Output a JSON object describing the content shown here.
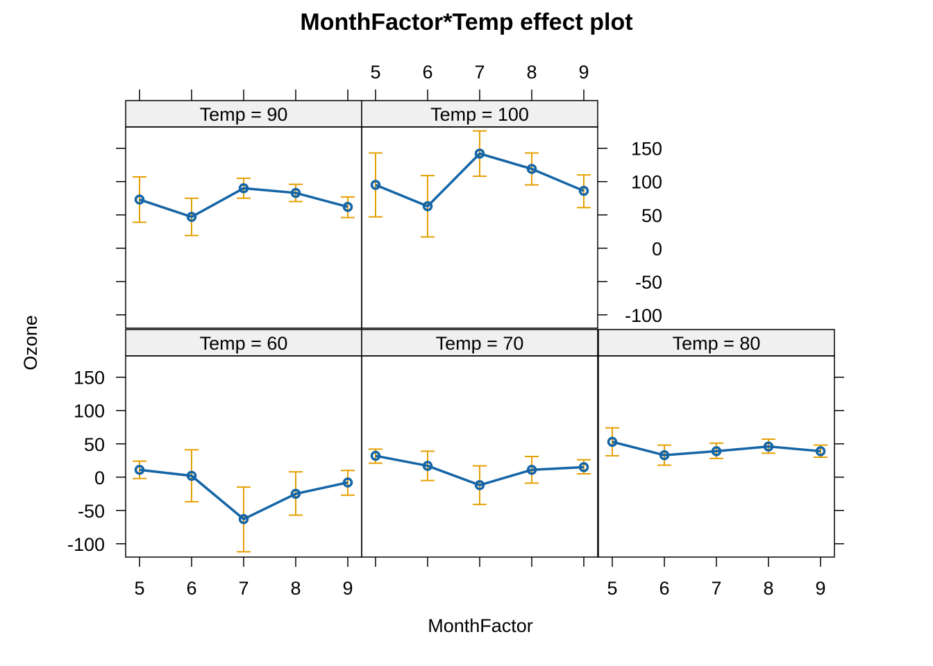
{
  "chart_data": {
    "type": "line",
    "title": "MonthFactor*Temp effect plot",
    "xlabel": "MonthFactor",
    "ylabel": "Ozone",
    "categories": [
      "5",
      "6",
      "7",
      "8",
      "9"
    ],
    "ylim": [
      -120,
      182
    ],
    "yticks": [
      "-100",
      "-50",
      "0",
      "50",
      "100",
      "150"
    ],
    "colors": {
      "line": "#1565a6",
      "error_bars": "#e69f00",
      "strip": "#f0f0f0"
    },
    "panels": [
      {
        "label": "Temp = 90",
        "values": [
          73,
          47,
          90,
          83,
          62
        ],
        "lower": [
          39,
          19,
          75,
          70,
          46
        ],
        "upper": [
          107,
          75,
          105,
          96,
          77
        ]
      },
      {
        "label": "Temp = 100",
        "values": [
          95,
          63,
          142,
          119,
          86
        ],
        "lower": [
          47,
          17,
          108,
          95,
          61
        ],
        "upper": [
          143,
          109,
          176,
          143,
          110
        ]
      },
      {
        "label": "Temp = 60",
        "values": [
          11,
          2,
          -63,
          -25,
          -8
        ],
        "lower": [
          -2,
          -37,
          -112,
          -57,
          -27
        ],
        "upper": [
          24,
          41,
          -15,
          8,
          10
        ]
      },
      {
        "label": "Temp = 70",
        "values": [
          32,
          17,
          -12,
          11,
          15
        ],
        "lower": [
          21,
          -5,
          -41,
          -9,
          5
        ],
        "upper": [
          42,
          39,
          17,
          31,
          26
        ]
      },
      {
        "label": "Temp = 80",
        "values": [
          53,
          33,
          39,
          46,
          39
        ],
        "lower": [
          32,
          18,
          28,
          36,
          30
        ],
        "upper": [
          74,
          48,
          51,
          57,
          48
        ]
      }
    ]
  }
}
